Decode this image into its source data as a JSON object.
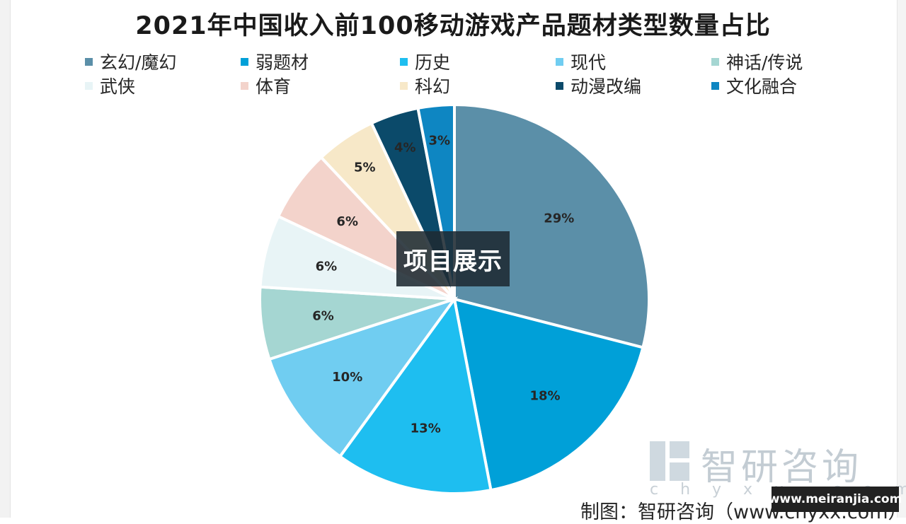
{
  "chart_data": {
    "type": "pie",
    "title": "2021年中国收入前100移动游戏产品题材类型数量占比",
    "legend_position": "top",
    "slices": [
      {
        "label": "玄幻/魔幻",
        "value": 29,
        "display": "29%",
        "color": "#5b8fa8"
      },
      {
        "label": "弱题材",
        "value": 18,
        "display": "18%",
        "color": "#00a0d8"
      },
      {
        "label": "历史",
        "value": 13,
        "display": "13%",
        "color": "#1ebef0"
      },
      {
        "label": "现代",
        "value": 10,
        "display": "10%",
        "color": "#70cdf1"
      },
      {
        "label": "神话/传说",
        "value": 6,
        "display": "6%",
        "color": "#a5d6d2"
      },
      {
        "label": "武侠",
        "value": 6,
        "display": "6%",
        "color": "#e8f4f6"
      },
      {
        "label": "体育",
        "value": 6,
        "display": "6%",
        "color": "#f3d3cb"
      },
      {
        "label": "科幻",
        "value": 5,
        "display": "5%",
        "color": "#f7e8c8"
      },
      {
        "label": "动漫改编",
        "value": 4,
        "display": "4%",
        "color": "#0b4a6a"
      },
      {
        "label": "文化融合",
        "value": 3,
        "display": "3%",
        "color": "#0e86c2"
      }
    ]
  },
  "overlay_text": "项目展示",
  "watermark": {
    "brand": "智研咨询",
    "url": "c h y x x . c o m"
  },
  "source_note": "制图：智研咨询（www.chyxx.com）",
  "site_badge": "www.meiranjia.com"
}
